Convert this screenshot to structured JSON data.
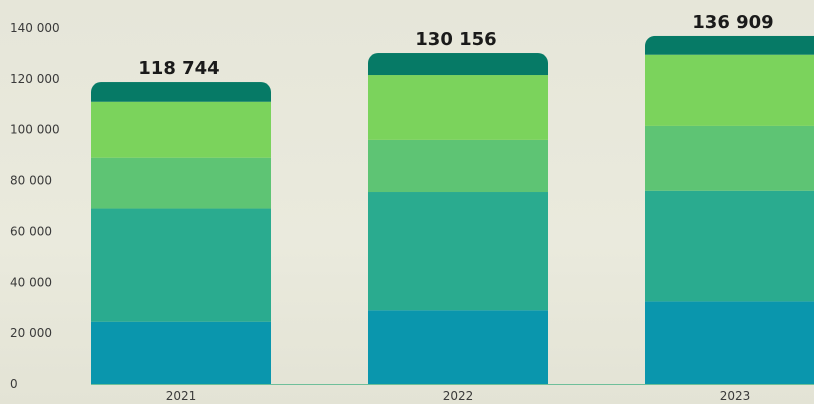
{
  "chart_data": {
    "type": "bar",
    "stacked": true,
    "title": "",
    "xlabel": "",
    "ylabel": "",
    "ylim": [
      0,
      140000
    ],
    "grid": false,
    "legend": "none",
    "y_ticks": [
      0,
      20000,
      40000,
      60000,
      80000,
      100000,
      120000,
      140000
    ],
    "y_tick_labels": [
      "0",
      "20 000",
      "40 000",
      "60 000",
      "80 000",
      "100 000",
      "120 000",
      "140 000"
    ],
    "categories": [
      "2021",
      "2022",
      "2023"
    ],
    "totals": [
      118744,
      130156,
      136909
    ],
    "total_labels": [
      "118 744",
      "130 156",
      "136 909"
    ],
    "series": [
      {
        "values": [
          24500,
          29000,
          32500
        ],
        "color": "#0a96ad"
      },
      {
        "values": [
          44500,
          46500,
          43500
        ],
        "color": "#2aab8f"
      },
      {
        "values": [
          20000,
          20500,
          25500
        ],
        "color": "#5ec474"
      },
      {
        "values": [
          22000,
          25500,
          28000
        ],
        "color": "#7bd35c"
      },
      {
        "values": [
          7744,
          8656,
          7409
        ],
        "color": "#067a66"
      }
    ],
    "axis_color": "#6fbf9a",
    "text_color": "#3a3a3a"
  }
}
